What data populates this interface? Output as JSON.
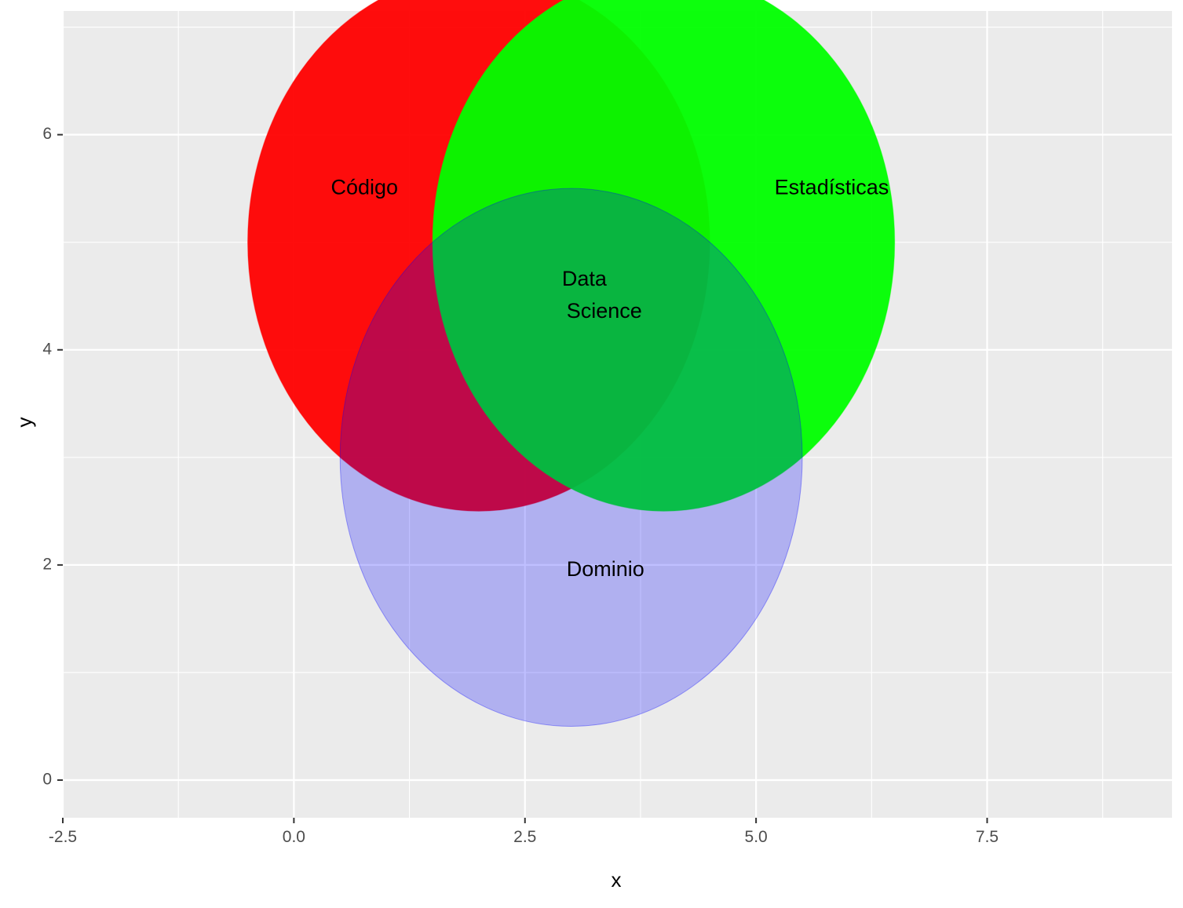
{
  "chart_data": {
    "type": "scatter",
    "subtype": "venn",
    "xlabel": "x",
    "ylabel": "y",
    "xlim": [
      -2.5,
      9.5
    ],
    "ylim": [
      -0.35,
      7.15
    ],
    "x_ticks": [
      -2.5,
      0.0,
      2.5,
      5.0,
      7.5
    ],
    "x_tick_labels": [
      "-2.5",
      "0.0",
      "2.5",
      "5.0",
      "7.5"
    ],
    "y_ticks": [
      0,
      2,
      4,
      6
    ],
    "y_tick_labels": [
      "0",
      "2",
      "4",
      "6"
    ],
    "grid": true,
    "circles": [
      {
        "name": "Código",
        "cx": 2,
        "cy": 5,
        "r": 2.5,
        "color": "#FF0000",
        "opacity": 0.95
      },
      {
        "name": "Estadísticas",
        "cx": 4,
        "cy": 5,
        "r": 2.5,
        "color": "#00FF00",
        "opacity": 0.95
      },
      {
        "name": "Dominio",
        "cx": 3,
        "cy": 3,
        "r": 2.5,
        "color": "#0000FF",
        "opacity": 0.25
      }
    ],
    "labels": [
      {
        "text": "Código",
        "x": 0.4,
        "y": 5.5
      },
      {
        "text": "Estadísticas",
        "x": 5.2,
        "y": 5.5
      },
      {
        "text": "Data",
        "x": 2.9,
        "y": 4.65
      },
      {
        "text": "Science",
        "x": 2.95,
        "y": 4.35
      },
      {
        "text": "Dominio",
        "x": 2.95,
        "y": 1.95
      }
    ]
  }
}
